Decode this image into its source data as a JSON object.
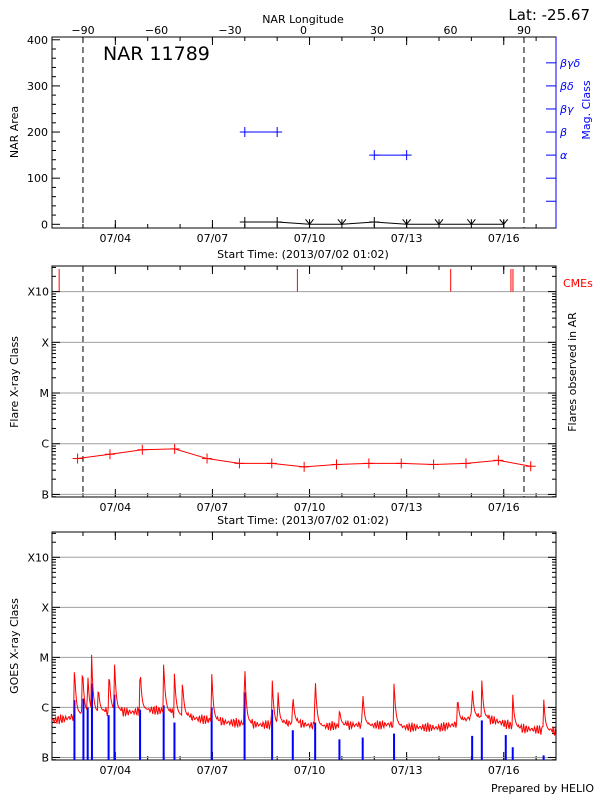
{
  "header": {
    "lat_label": "Lat: -25.67",
    "longitude_axis_title": "NAR Longitude",
    "region_label": "NAR 11789"
  },
  "footer": {
    "credit": "Prepared by HELIO"
  },
  "colors": {
    "area": "#000000",
    "mag_class": "#0000ff",
    "flare": "#ff0000",
    "cme": "#ff0000",
    "goes_long": "#ff0000",
    "goes_short": "#0000ff",
    "grid": "#a0a0a0"
  },
  "chart_data": [
    {
      "type": "line",
      "xlabel": "Start Time: (2013/07/02 01:02)",
      "ylabel": "NAR Area",
      "y2label": "Mag. Class",
      "xlim": [
        "2013-07-02 01:02",
        "2013-07-17 14:45"
      ],
      "ylim": [
        -8,
        406
      ],
      "yticks": [
        0,
        100,
        200,
        300,
        400
      ],
      "xtick_labels": [
        "07/04",
        "07/07",
        "07/10",
        "07/13",
        "07/16"
      ],
      "xtick_times": [
        "2013-07-04 00:00",
        "2013-07-07 00:00",
        "2013-07-10 00:00",
        "2013-07-13 00:00",
        "2013-07-16 00:00"
      ],
      "longitude_ticks": [
        -90,
        -60,
        -30,
        0,
        30,
        60,
        90
      ],
      "limb_crossings": [
        {
          "longitude": -90,
          "time": "2013-07-03 00:00"
        },
        {
          "longitude": 90,
          "time": "2013-07-16 15:00"
        }
      ],
      "area": {
        "times": [
          "2013-07-08 00:00",
          "2013-07-09 00:00",
          "2013-07-10 00:00",
          "2013-07-11 00:00",
          "2013-07-12 00:00",
          "2013-07-13 00:00",
          "2013-07-14 00:00",
          "2013-07-15 00:00",
          "2013-07-16 00:00"
        ],
        "values": [
          5,
          5,
          0,
          0,
          5,
          0,
          0,
          0,
          0
        ]
      },
      "mag_class_axis": [
        {
          "label": "",
          "value": 50
        },
        {
          "label": "",
          "value": 100
        },
        {
          "label": "α",
          "value": 150
        },
        {
          "label": "β",
          "value": 200
        },
        {
          "label": "βγ",
          "value": 250
        },
        {
          "label": "βδ",
          "value": 300
        },
        {
          "label": "βγδ",
          "value": 350
        }
      ],
      "mag_class_series": [
        {
          "class": "β",
          "start": "2013-07-08 00:00",
          "end": "2013-07-09 00:00"
        },
        {
          "class": "α",
          "start": "2013-07-12 00:00",
          "end": "2013-07-13 00:00"
        }
      ]
    },
    {
      "type": "line",
      "xlabel": "Start Time: (2013/07/02 01:02)",
      "ylabel": "Flare X-ray Class",
      "y2label": "Flares observed in AR",
      "yscale": "log",
      "ylim_flux": [
        8.9e-08,
        0.0032
      ],
      "yticks": [
        "B",
        "C",
        "M",
        "X",
        "X10"
      ],
      "grid": true,
      "cme_label": "CMEs",
      "flares": {
        "times": [
          "2013-07-02 20:00",
          "2013-07-03 20:00",
          "2013-07-04 20:00",
          "2013-07-05 20:00",
          "2013-07-06 20:00",
          "2013-07-07 20:00",
          "2013-07-08 20:00",
          "2013-07-09 20:00",
          "2013-07-10 20:00",
          "2013-07-11 20:00",
          "2013-07-12 20:00",
          "2013-07-13 20:00",
          "2013-07-14 20:00",
          "2013-07-15 20:00",
          "2013-07-16 20:00"
        ],
        "classes": [
          "B5.1",
          "B6.2",
          "B7.6",
          "B7.9",
          "B5.1",
          "B4.1",
          "B4.1",
          "B3.5",
          "B3.9",
          "B4.1",
          "B4.1",
          "B3.9",
          "B4.1",
          "B4.7",
          "B3.6"
        ]
      },
      "cme_times": [
        "2013-07-02 06:20",
        "2013-07-09 15:00",
        "2013-07-14 08:40",
        "2013-07-16 05:20",
        "2013-07-16 06:50"
      ]
    },
    {
      "type": "line",
      "ylabel": "GOES X-ray Class",
      "yscale": "log",
      "ylim_flux": [
        8.9e-08,
        0.0032
      ],
      "yticks": [
        "B",
        "C",
        "M",
        "X",
        "X10"
      ],
      "grid": true,
      "goes_long_baseline": {
        "times": [
          "2013-07-02 01:02",
          "2013-07-02 12:00",
          "2013-07-03 00:00",
          "2013-07-03 12:00",
          "2013-07-04 00:00",
          "2013-07-04 12:00",
          "2013-07-05 00:00",
          "2013-07-05 12:00",
          "2013-07-06 00:00",
          "2013-07-06 12:00",
          "2013-07-07 00:00",
          "2013-07-07 12:00",
          "2013-07-08 00:00",
          "2013-07-08 12:00",
          "2013-07-09 00:00",
          "2013-07-09 12:00",
          "2013-07-10 00:00",
          "2013-07-10 12:00",
          "2013-07-11 00:00",
          "2013-07-11 12:00",
          "2013-07-12 00:00",
          "2013-07-12 12:00",
          "2013-07-13 00:00",
          "2013-07-13 12:00",
          "2013-07-14 00:00",
          "2013-07-14 12:00",
          "2013-07-15 00:00",
          "2013-07-15 12:00",
          "2013-07-16 00:00",
          "2013-07-16 12:00",
          "2013-07-17 00:00",
          "2013-07-17 14:45"
        ],
        "classes": [
          "B5.5",
          "B6.0",
          "B7.5",
          "B8.0",
          "B8.5",
          "B8.0",
          "B9.0",
          "B8.5",
          "B7.0",
          "B6.0",
          "B5.5",
          "B5.0",
          "B4.8",
          "B4.5",
          "B4.5",
          "B5.0",
          "B4.4",
          "B4.2",
          "B4.3",
          "B4.5",
          "B4.4",
          "B4.6",
          "B4.0",
          "B4.0",
          "B3.9",
          "B4.6",
          "B6.5",
          "B6.0",
          "B4.8",
          "B3.8",
          "B3.6",
          "B3.3"
        ]
      },
      "goes_long_peaks": {
        "times": [
          "2013-07-02 17:40",
          "2013-07-02 23:35",
          "2013-07-03 03:30",
          "2013-07-03 06:20",
          "2013-07-03 11:20",
          "2013-07-03 19:20",
          "2013-07-03 23:20",
          "2013-07-04 18:20",
          "2013-07-05 11:50",
          "2013-07-05 19:50",
          "2013-07-06 01:45",
          "2013-07-06 23:25",
          "2013-07-07 23:50",
          "2013-07-08 20:15",
          "2013-07-09 00:30",
          "2013-07-09 11:35",
          "2013-07-10 04:10",
          "2013-07-10 22:10",
          "2013-07-11 15:25",
          "2013-07-12 14:40",
          "2013-07-14 13:45",
          "2013-07-15 00:35",
          "2013-07-15 07:45",
          "2013-07-16 06:40",
          "2013-07-17 05:35"
        ],
        "classes": [
          "C7.6",
          "C7.6",
          "C5.5",
          "M1.3",
          "C2.8",
          "C6.0",
          "C9.5",
          "C7.0",
          "C9.0",
          "C5.5",
          "C3.8",
          "C6.0",
          "M1.0",
          "C4.5",
          "C2.5",
          "C2.0",
          "C5.0",
          "C1.0",
          "C2.3",
          "C3.5",
          "C1.8",
          "C2.8",
          "C3.5",
          "C1.9",
          "C1.6"
        ]
      },
      "goes_short_peaks": {
        "times": [
          "2013-07-02 17:40",
          "2013-07-03 00:20",
          "2013-07-03 03:30",
          "2013-07-03 06:40",
          "2013-07-03 19:00",
          "2013-07-03 23:20",
          "2013-07-04 18:20",
          "2013-07-05 11:50",
          "2013-07-05 19:50",
          "2013-07-06 23:25",
          "2013-07-07 23:50",
          "2013-07-08 20:15",
          "2013-07-09 11:35",
          "2013-07-10 04:10",
          "2013-07-10 22:10",
          "2013-07-11 15:25",
          "2013-07-12 14:40",
          "2013-07-15 00:35",
          "2013-07-15 07:45",
          "2013-07-16 01:30",
          "2013-07-16 06:40",
          "2013-07-17 05:35"
        ],
        "classes": [
          "C1.4",
          "C1.5",
          "C1.0",
          "C3.0",
          "B7.0",
          "C1.8",
          "B9.0",
          "C1.1",
          "B5.0",
          "C1.0",
          "C2.0",
          "B9.0",
          "B3.5",
          "B5.0",
          "B2.3",
          "B2.5",
          "B3.0",
          "B2.7",
          "B5.5",
          "B2.8",
          "B1.6",
          "B1.1"
        ]
      }
    }
  ]
}
